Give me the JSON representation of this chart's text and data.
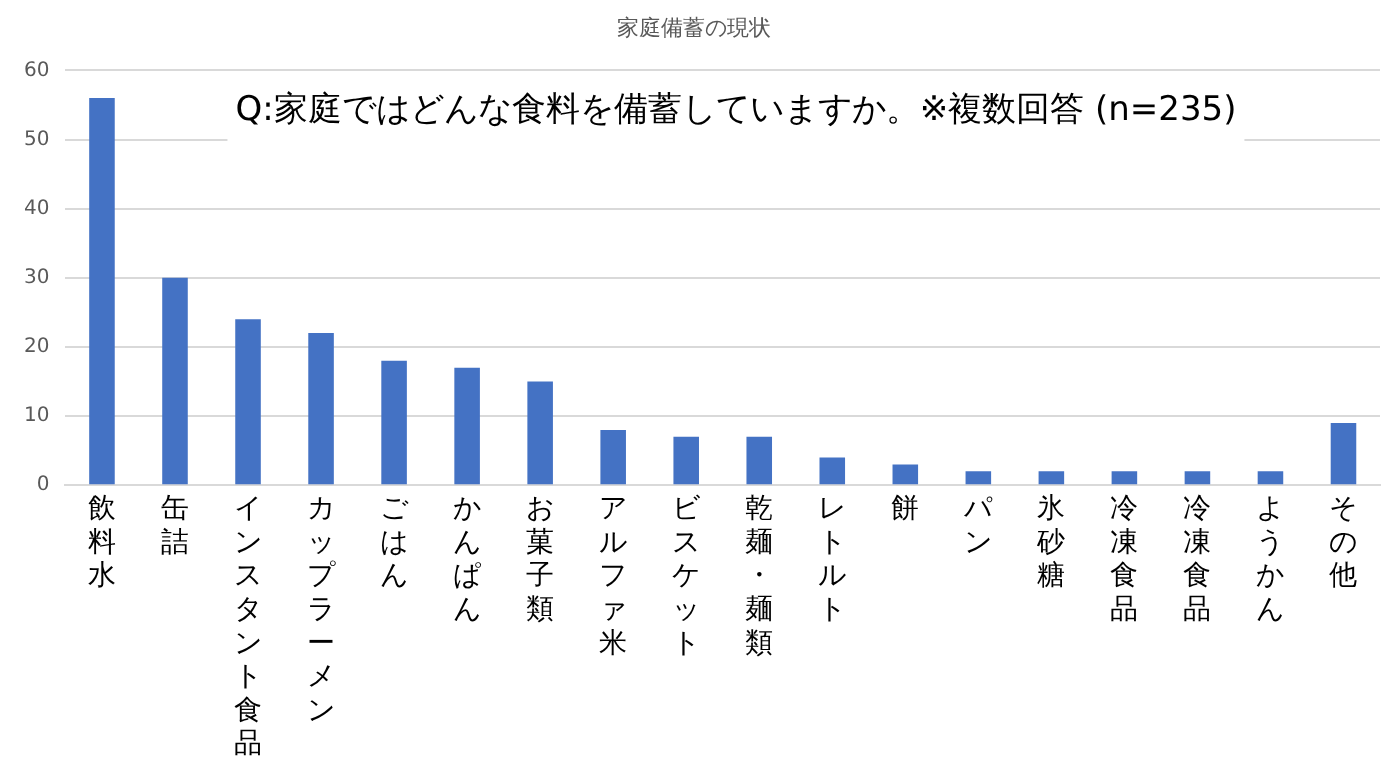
{
  "chart_data": {
    "type": "bar",
    "title": "家庭備蓄の現状",
    "categories": [
      "飲料水",
      "缶詰",
      "インスタント食品",
      "カップラーメン",
      "ごはん",
      "かんぱん",
      "お菓子類",
      "アルファ米",
      "ビスケット",
      "乾麺・麺類",
      "レトルト",
      "餅",
      "パン",
      "氷砂糖",
      "冷凍食品",
      "冷凍食品",
      "ようかん",
      "その他"
    ],
    "values": [
      56,
      30,
      24,
      22,
      18,
      17,
      15,
      8,
      7,
      7,
      4,
      3,
      2,
      2,
      2,
      2,
      2,
      9
    ],
    "color": "#4472c4",
    "ylim": [
      0,
      60
    ],
    "yticks": [
      0,
      10,
      20,
      30,
      40,
      50,
      60
    ],
    "grid": "y",
    "legend": false,
    "annotations": [
      "Q:家庭ではどんな食料を備蓄していますか。※複数回答 (n=235)"
    ]
  }
}
